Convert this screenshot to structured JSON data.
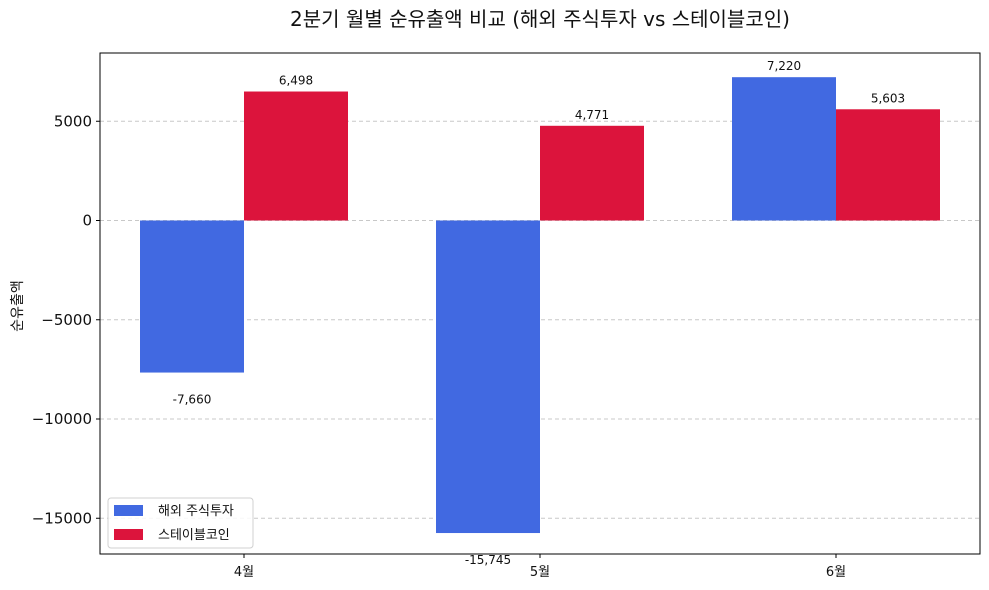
{
  "chart_data": {
    "type": "bar",
    "title": "2분기 월별 순유출액 비교 (해외 주식투자 vs 스테이블코인)",
    "xlabel": "",
    "ylabel": "순유출액",
    "categories": [
      "4월",
      "5월",
      "6월"
    ],
    "series": [
      {
        "name": "해외 주식투자",
        "values": [
          -7660,
          -15745,
          7220
        ],
        "labels": [
          "-7,660",
          "-15,745",
          "7,220"
        ],
        "color": "#4169e1"
      },
      {
        "name": "스테이블코인",
        "values": [
          6498,
          4771,
          5603
        ],
        "labels": [
          "6,498",
          "4,771",
          "5,603"
        ],
        "color": "#dc143c"
      }
    ],
    "ylim": [
      -16800,
      8500
    ],
    "yticks": [
      5000,
      0,
      -5000,
      -10000,
      -15000
    ],
    "ytick_labels": [
      "5000",
      "0",
      "−5000",
      "−10000",
      "−15000"
    ],
    "grid": true,
    "legend": "lower-left"
  }
}
